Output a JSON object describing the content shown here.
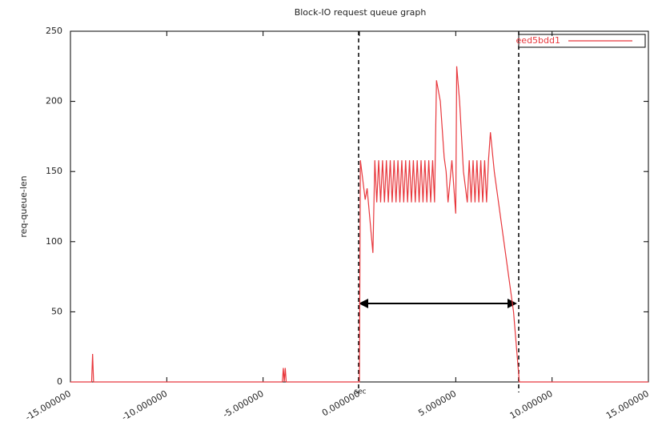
{
  "chart_data": {
    "type": "line",
    "title": "Block-IO request queue graph",
    "x_label": "sec",
    "y_label": "req-queue-len",
    "x": [
      -15,
      -13.9,
      -13.85,
      -13.8,
      -4.0,
      -3.95,
      -3.9,
      -3.85,
      -3.8,
      0,
      0.05,
      0.3,
      0.4,
      0.7,
      0.8,
      0.9,
      1.0,
      1.1,
      1.2,
      1.3,
      1.4,
      1.5,
      1.6,
      1.7,
      1.8,
      1.9,
      2.0,
      2.1,
      2.2,
      2.3,
      2.4,
      2.5,
      2.6,
      2.7,
      2.8,
      2.9,
      3.0,
      3.1,
      3.2,
      3.3,
      3.4,
      3.5,
      3.6,
      3.7,
      3.8,
      3.9,
      4.0,
      4.2,
      4.4,
      4.5,
      4.6,
      4.8,
      5.0,
      5.05,
      5.2,
      5.4,
      5.6,
      5.7,
      5.8,
      5.9,
      6.0,
      6.1,
      6.2,
      6.3,
      6.4,
      6.5,
      6.6,
      6.7,
      6.8,
      7.0,
      7.5,
      8.0,
      8.3,
      15
    ],
    "series": [
      {
        "name": "eed5bdd1",
        "color": "#e8383d",
        "values": [
          0,
          0,
          20,
          0,
          0,
          10,
          0,
          10,
          0,
          0,
          158,
          130,
          138,
          92,
          158,
          128,
          158,
          128,
          158,
          128,
          158,
          128,
          158,
          128,
          158,
          128,
          158,
          128,
          158,
          128,
          158,
          128,
          158,
          128,
          158,
          128,
          158,
          128,
          158,
          128,
          158,
          128,
          158,
          128,
          158,
          128,
          215,
          200,
          160,
          150,
          128,
          158,
          120,
          225,
          200,
          150,
          128,
          158,
          128,
          158,
          128,
          158,
          128,
          158,
          128,
          158,
          128,
          158,
          178,
          150,
          100,
          50,
          0,
          0
        ]
      }
    ],
    "xlim": [
      -15,
      15
    ],
    "xticks": [
      {
        "value": -15,
        "label": "-15.000000"
      },
      {
        "value": -10,
        "label": "-10.000000"
      },
      {
        "value": -5,
        "label": "-5.000000"
      },
      {
        "value": 0,
        "label": "0.000000"
      },
      {
        "value": 5,
        "label": "5.000000"
      },
      {
        "value": 10,
        "label": "10.000000"
      },
      {
        "value": 15,
        "label": "15.000000"
      }
    ],
    "ylim": [
      0,
      250
    ],
    "yticks": [
      0,
      50,
      100,
      150,
      200,
      250
    ],
    "grid": false,
    "legend": "top-right"
  }
}
